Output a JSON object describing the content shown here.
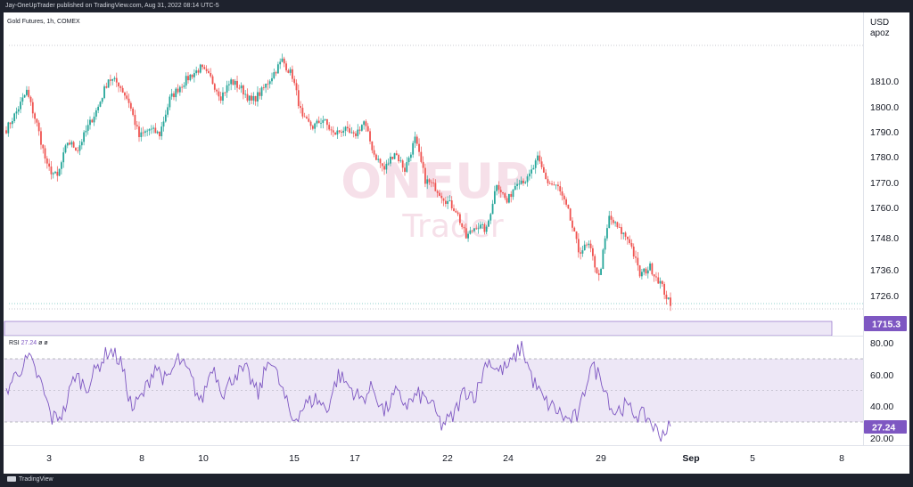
{
  "header": {
    "publisher_line": "Jay-OneUpTrader published on TradingView.com, Aug 31, 2022 08:14 UTC-5",
    "symbol_line": "Gold Futures, 1h, COMEX",
    "currency": "USD",
    "unit": "apoz"
  },
  "watermark": {
    "brand_line1": "ONEUP",
    "brand_line2": "Trader"
  },
  "price_axis": {
    "ticks": [
      "1810.0",
      "1800.0",
      "1790.0",
      "1780.0",
      "1770.0",
      "1760.0",
      "1748.0",
      "1736.0",
      "1726.0"
    ],
    "last_price_label": "1715.3"
  },
  "rsi_panel": {
    "label": "RSI",
    "value": "27.24",
    "extra": "ø ø",
    "ticks": [
      "80.00",
      "60.00",
      "40.00",
      "20.00"
    ],
    "value_label": "27.24"
  },
  "time_axis": {
    "ticks": [
      "3",
      "8",
      "10",
      "15",
      "17",
      "22",
      "24",
      "29",
      "Sep",
      "5",
      "8"
    ]
  },
  "footer": {
    "brand": "TradingView"
  },
  "colors": {
    "up": "#26a69a",
    "down": "#ef5350",
    "rsi_line": "#7e57c2",
    "rsi_band": "#ede7f6",
    "price_badge": "#7e57c2"
  },
  "chart_data": {
    "type": "candlestick",
    "interval": "1h",
    "ylim": [
      1715,
      1830
    ],
    "rsi_ylim": [
      15,
      85
    ],
    "rsi_levels": [
      70,
      50,
      30
    ],
    "anchor_closes": [
      1791,
      1798,
      1806,
      1793,
      1776,
      1772,
      1786,
      1783,
      1792,
      1800,
      1811,
      1809,
      1802,
      1788,
      1791,
      1789,
      1803,
      1808,
      1812,
      1815,
      1811,
      1804,
      1810,
      1807,
      1802,
      1806,
      1812,
      1818,
      1812,
      1795,
      1792,
      1795,
      1789,
      1791,
      1788,
      1794,
      1781,
      1775,
      1782,
      1775,
      1787,
      1771,
      1768,
      1763,
      1759,
      1748,
      1753,
      1751,
      1770,
      1762,
      1771,
      1771,
      1779,
      1770,
      1768,
      1758,
      1743,
      1745,
      1733,
      1756,
      1751,
      1747,
      1734,
      1737,
      1731,
      1722
    ],
    "rsi_anchors": [
      50,
      62,
      70,
      55,
      32,
      36,
      60,
      52,
      65,
      76,
      68,
      38,
      48,
      66,
      55,
      70,
      60,
      42,
      66,
      48,
      61,
      62,
      47,
      72,
      52,
      31,
      40,
      45,
      38,
      60,
      52,
      44,
      52,
      36,
      48,
      41,
      47,
      43,
      28,
      33,
      50,
      47,
      70,
      62,
      66,
      78,
      56,
      43,
      38,
      31,
      34,
      66,
      58,
      36,
      40,
      35,
      33,
      22,
      27
    ],
    "last_price": 1715.3,
    "last_rsi": 27.24
  }
}
